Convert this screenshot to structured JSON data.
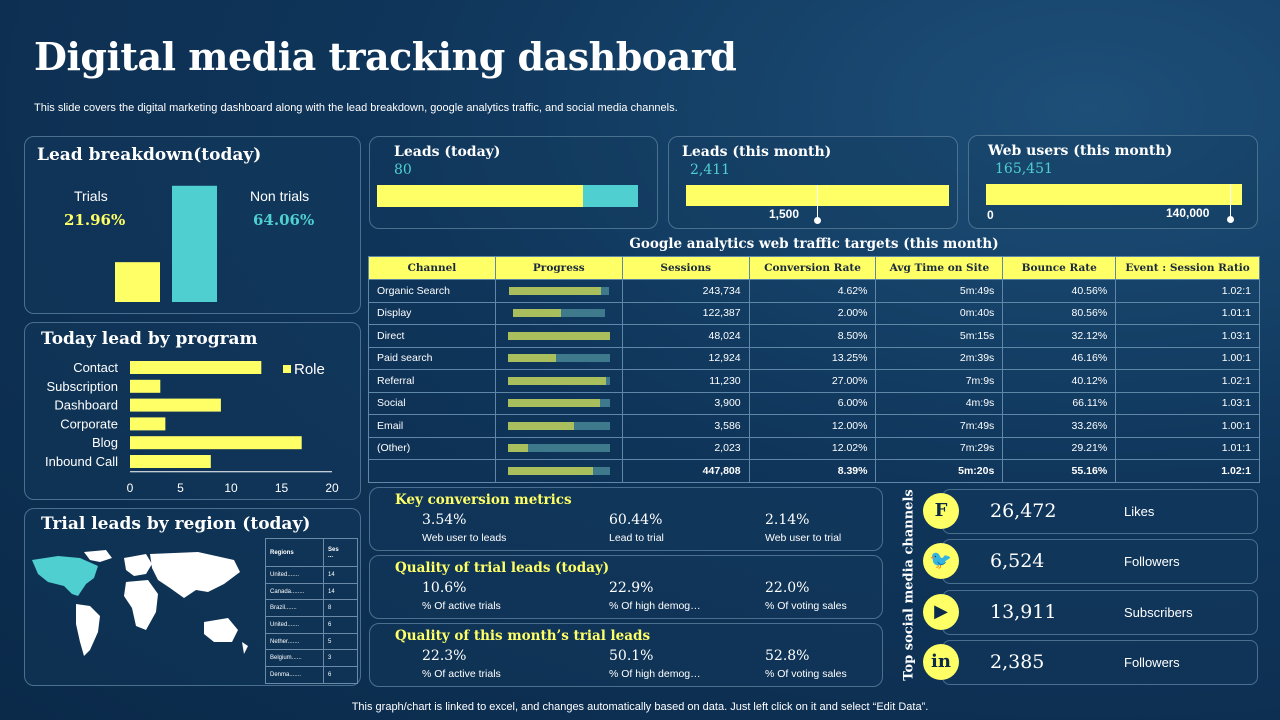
{
  "page": {
    "title": "Digital media tracking dashboard",
    "subtitle": "This slide covers the digital marketing dashboard along with the lead breakdown, google analytics traffic, and social media channels.",
    "footer": "This graph/chart is linked to excel,  and changes automatically based on data. Just left click on it and select “Edit Data”."
  },
  "colors": {
    "yellow": "#ffff66",
    "teal": "#4fcfcf",
    "background": "#0f355a"
  },
  "lead_breakdown": {
    "title": "Lead breakdown(today)",
    "trials_label": "Trials",
    "trials_value": "21.96%",
    "non_trials_label": "Non trials",
    "non_trials_value": "64.06%"
  },
  "kpis": {
    "leads_today": {
      "title": "Leads (today)",
      "value": "80",
      "progress": 0.79
    },
    "leads_month": {
      "title": "Leads (this month)",
      "value": "2,411",
      "marker_label": "1,500"
    },
    "web_users": {
      "title": "Web users (this month)",
      "value": "165,451",
      "min_label": "0",
      "marker_label": "140,000"
    }
  },
  "program_title": "Today lead by program",
  "region": {
    "title": "Trial leads by region (today)",
    "col_regions": "Regions",
    "col_sessions": "Ses\n...",
    "rows": [
      {
        "name": "United.......",
        "value": "14"
      },
      {
        "name": "Canada........",
        "value": "14"
      },
      {
        "name": "Brazil.......",
        "value": "8"
      },
      {
        "name": "United.......",
        "value": "6"
      },
      {
        "name": "Nether.......",
        "value": "5"
      },
      {
        "name": "Belgium......",
        "value": "3"
      },
      {
        "name": "Denma.......",
        "value": "6"
      }
    ]
  },
  "ga": {
    "title": "Google analytics web traffic targets (this month)",
    "headers": [
      "Channel",
      "Progress",
      "Sessions",
      "Conversion Rate",
      "Avg Time on Site",
      "Bounce Rate",
      "Event : Session Ratio"
    ],
    "rows": [
      {
        "channel": "Organic Search",
        "progress": 0.9,
        "target": 0.98,
        "sessions": "243,734",
        "conv": "4.62%",
        "time": "5m:49s",
        "bounce": "40.56%",
        "ratio": "1.02:1"
      },
      {
        "channel": "Display",
        "progress": 0.47,
        "target": 0.9,
        "sessions": "122,387",
        "conv": "2.00%",
        "time": "0m:40s",
        "bounce": "80.56%",
        "ratio": "1.01:1"
      },
      {
        "channel": "Direct",
        "progress": 1.0,
        "target": 1.0,
        "sessions": "48,024",
        "conv": "8.50%",
        "time": "5m:15s",
        "bounce": "32.12%",
        "ratio": "1.03:1"
      },
      {
        "channel": "Paid search",
        "progress": 0.47,
        "target": 1.0,
        "sessions": "12,924",
        "conv": "13.25%",
        "time": "2m:39s",
        "bounce": "46.16%",
        "ratio": "1.00:1"
      },
      {
        "channel": "Referral",
        "progress": 0.96,
        "target": 1.0,
        "sessions": "11,230",
        "conv": "27.00%",
        "time": "7m:9s",
        "bounce": "40.12%",
        "ratio": "1.02:1"
      },
      {
        "channel": "Social",
        "progress": 0.9,
        "target": 1.0,
        "sessions": "3,900",
        "conv": "6.00%",
        "time": "4m:9s",
        "bounce": "66.11%",
        "ratio": "1.03:1"
      },
      {
        "channel": "Email",
        "progress": 0.65,
        "target": 1.0,
        "sessions": "3,586",
        "conv": "12.00%",
        "time": "7m:49s",
        "bounce": "33.26%",
        "ratio": "1.00:1"
      },
      {
        "channel": "(Other)",
        "progress": 0.2,
        "target": 1.0,
        "sessions": "2,023",
        "conv": "12.02%",
        "time": "7m:29s",
        "bounce": "29.21%",
        "ratio": "1.01:1"
      }
    ],
    "total": {
      "progress": 0.84,
      "target": 1.0,
      "sessions": "447,808",
      "conv": "8.39%",
      "time": "5m:20s",
      "bounce": "55.16%",
      "ratio": "1.02:1"
    }
  },
  "metrics": [
    {
      "title": "Key conversion metrics",
      "items": [
        {
          "value": "3.54%",
          "label": "Web user to leads"
        },
        {
          "value": "60.44%",
          "label": "Lead to trial"
        },
        {
          "value": "2.14%",
          "label": "Web user to trial"
        }
      ]
    },
    {
      "title": "Quality of trial leads (today)",
      "items": [
        {
          "value": "10.6%",
          "label": "% Of active trials"
        },
        {
          "value": "22.9%",
          "label": "% Of high demog…"
        },
        {
          "value": "22.0%",
          "label": "% Of voting sales"
        }
      ]
    },
    {
      "title": "Quality of this month’s trial leads",
      "items": [
        {
          "value": "22.3%",
          "label": "% Of active trials"
        },
        {
          "value": "50.1%",
          "label": "% Of high demog…"
        },
        {
          "value": "52.8%",
          "label": "% Of voting sales"
        }
      ]
    }
  ],
  "social": {
    "title": "Top social media channels",
    "rows": [
      {
        "icon": "facebook-icon",
        "glyph": "F",
        "value": "26,472",
        "label": "Likes"
      },
      {
        "icon": "twitter-icon",
        "glyph": "🐦",
        "value": "6,524",
        "label": "Followers"
      },
      {
        "icon": "youtube-icon",
        "glyph": "▶",
        "value": "13,911",
        "label": "Subscribers"
      },
      {
        "icon": "linkedin-icon",
        "glyph": "in",
        "value": "2,385",
        "label": "Followers"
      }
    ]
  },
  "chart_data": [
    {
      "type": "bar",
      "title": "Lead breakdown(today)",
      "categories": [
        "Trials",
        "Non trials"
      ],
      "values": [
        21.96,
        64.06
      ],
      "ylim": [
        0,
        70
      ]
    },
    {
      "type": "bar",
      "orientation": "horizontal",
      "title": "Today lead by program",
      "categories": [
        "Contact",
        "Subscription",
        "Dashboard",
        "Corporate",
        "Blog",
        "Inbound Call"
      ],
      "series": [
        {
          "name": "Role",
          "values": [
            13,
            3,
            9,
            3.5,
            17,
            8
          ]
        }
      ],
      "xticks": [
        "0",
        "5",
        "10",
        "15",
        "20"
      ],
      "xlim": [
        0,
        20
      ],
      "legend": "top-right"
    }
  ]
}
